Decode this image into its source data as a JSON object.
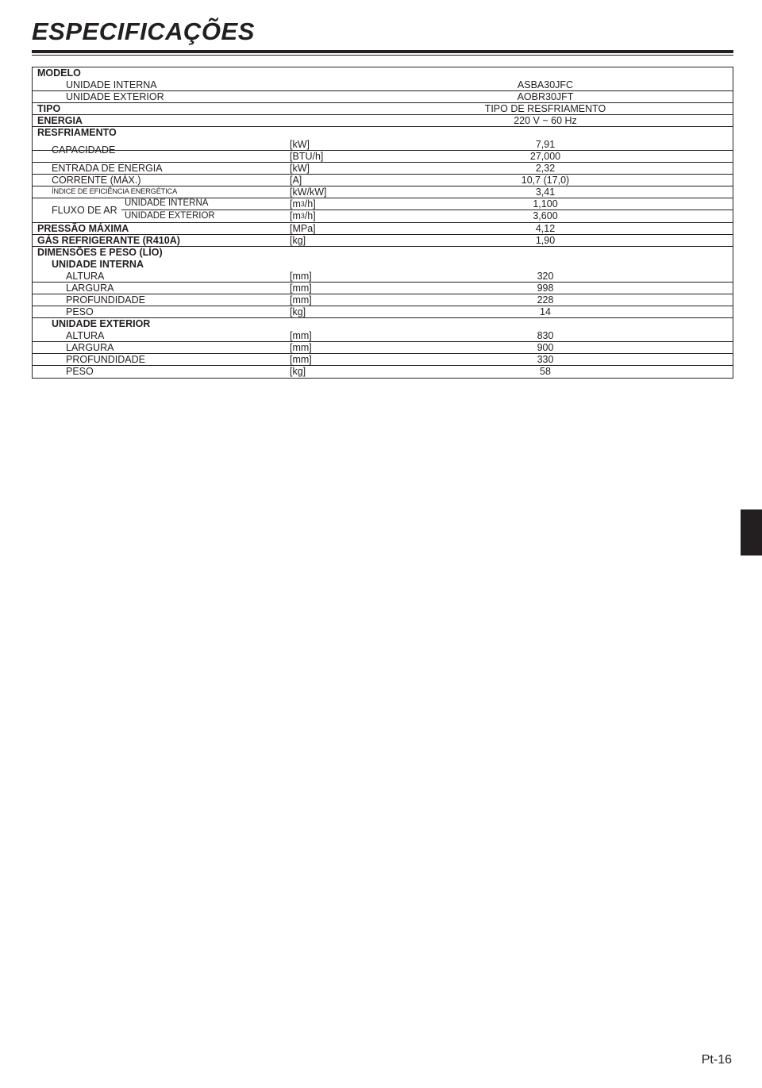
{
  "page": {
    "title": "ESPECIFICAÇÕES",
    "page_number": "Pt-16",
    "background_color": "#ffffff",
    "text_color": "#231f20",
    "rule_color": "#231f20",
    "side_tab_color": "#231f20",
    "title_fontsize": 31,
    "body_fontsize": 12.5
  },
  "spec": {
    "modelo_label": "MODELO",
    "unidade_interna_label": "UNIDADE INTERNA",
    "unidade_interna_value": "ASBA30JFC",
    "unidade_exterior_label": "UNIDADE EXTERIOR",
    "unidade_exterior_value": "AOBR30JFT",
    "tipo_label": "TIPO",
    "tipo_value": "TIPO DE RESFRIAMENTO",
    "energia_label": "ENERGIA",
    "energia_value": "220 V ~ 60 Hz",
    "resfriamento_label": "RESFRIAMENTO",
    "capacidade_label": "CAPACIDADE",
    "capacidade_kw_unit": "[kW]",
    "capacidade_kw_value": "7,91",
    "capacidade_btu_unit": "[BTU/h]",
    "capacidade_btu_value": "27,000",
    "entrada_energia_label": "ENTRADA DE ENERGIA",
    "entrada_energia_unit": "[kW]",
    "entrada_energia_value": "2,32",
    "corrente_label": "CORRENTE (MÁX.)",
    "corrente_unit": "[A]",
    "corrente_value": "10,7 (17,0)",
    "eer_label": "ÍNDICE DE EFICIÊNCIA ENERGÉTICA",
    "eer_unit": "[kW/kW]",
    "eer_value": "3,41",
    "fluxo_label": "FLUXO DE AR",
    "fluxo_int_label": "UNIDADE INTERNA",
    "fluxo_int_unit": "[m³/h]",
    "fluxo_int_value": "1,100",
    "fluxo_ext_label": "UNIDADE EXTERIOR",
    "fluxo_ext_unit": "[m³/h]",
    "fluxo_ext_value": "3,600",
    "pressao_label": "PRESSÃO MÁXIMA",
    "pressao_unit": "[MPa]",
    "pressao_value": "4,12",
    "gas_label": "GÁS REFRIGERANTE (R410A)",
    "gas_unit": "[kg]",
    "gas_value": "1,90",
    "dim_label": "DIMENSÕES E PESO (LÍO)",
    "dim_int_label": "UNIDADE INTERNA",
    "altura_label": "ALTURA",
    "largura_label": "LARGURA",
    "profundidade_label": "PROFUNDIDADE",
    "peso_label": "PESO",
    "mm_unit": "[mm]",
    "kg_unit": "[kg]",
    "int_altura": "320",
    "int_largura": "998",
    "int_profundidade": "228",
    "int_peso": "14",
    "dim_ext_label": "UNIDADE EXTERIOR",
    "ext_altura": "830",
    "ext_largura": "900",
    "ext_profundidade": "330",
    "ext_peso": "58"
  }
}
